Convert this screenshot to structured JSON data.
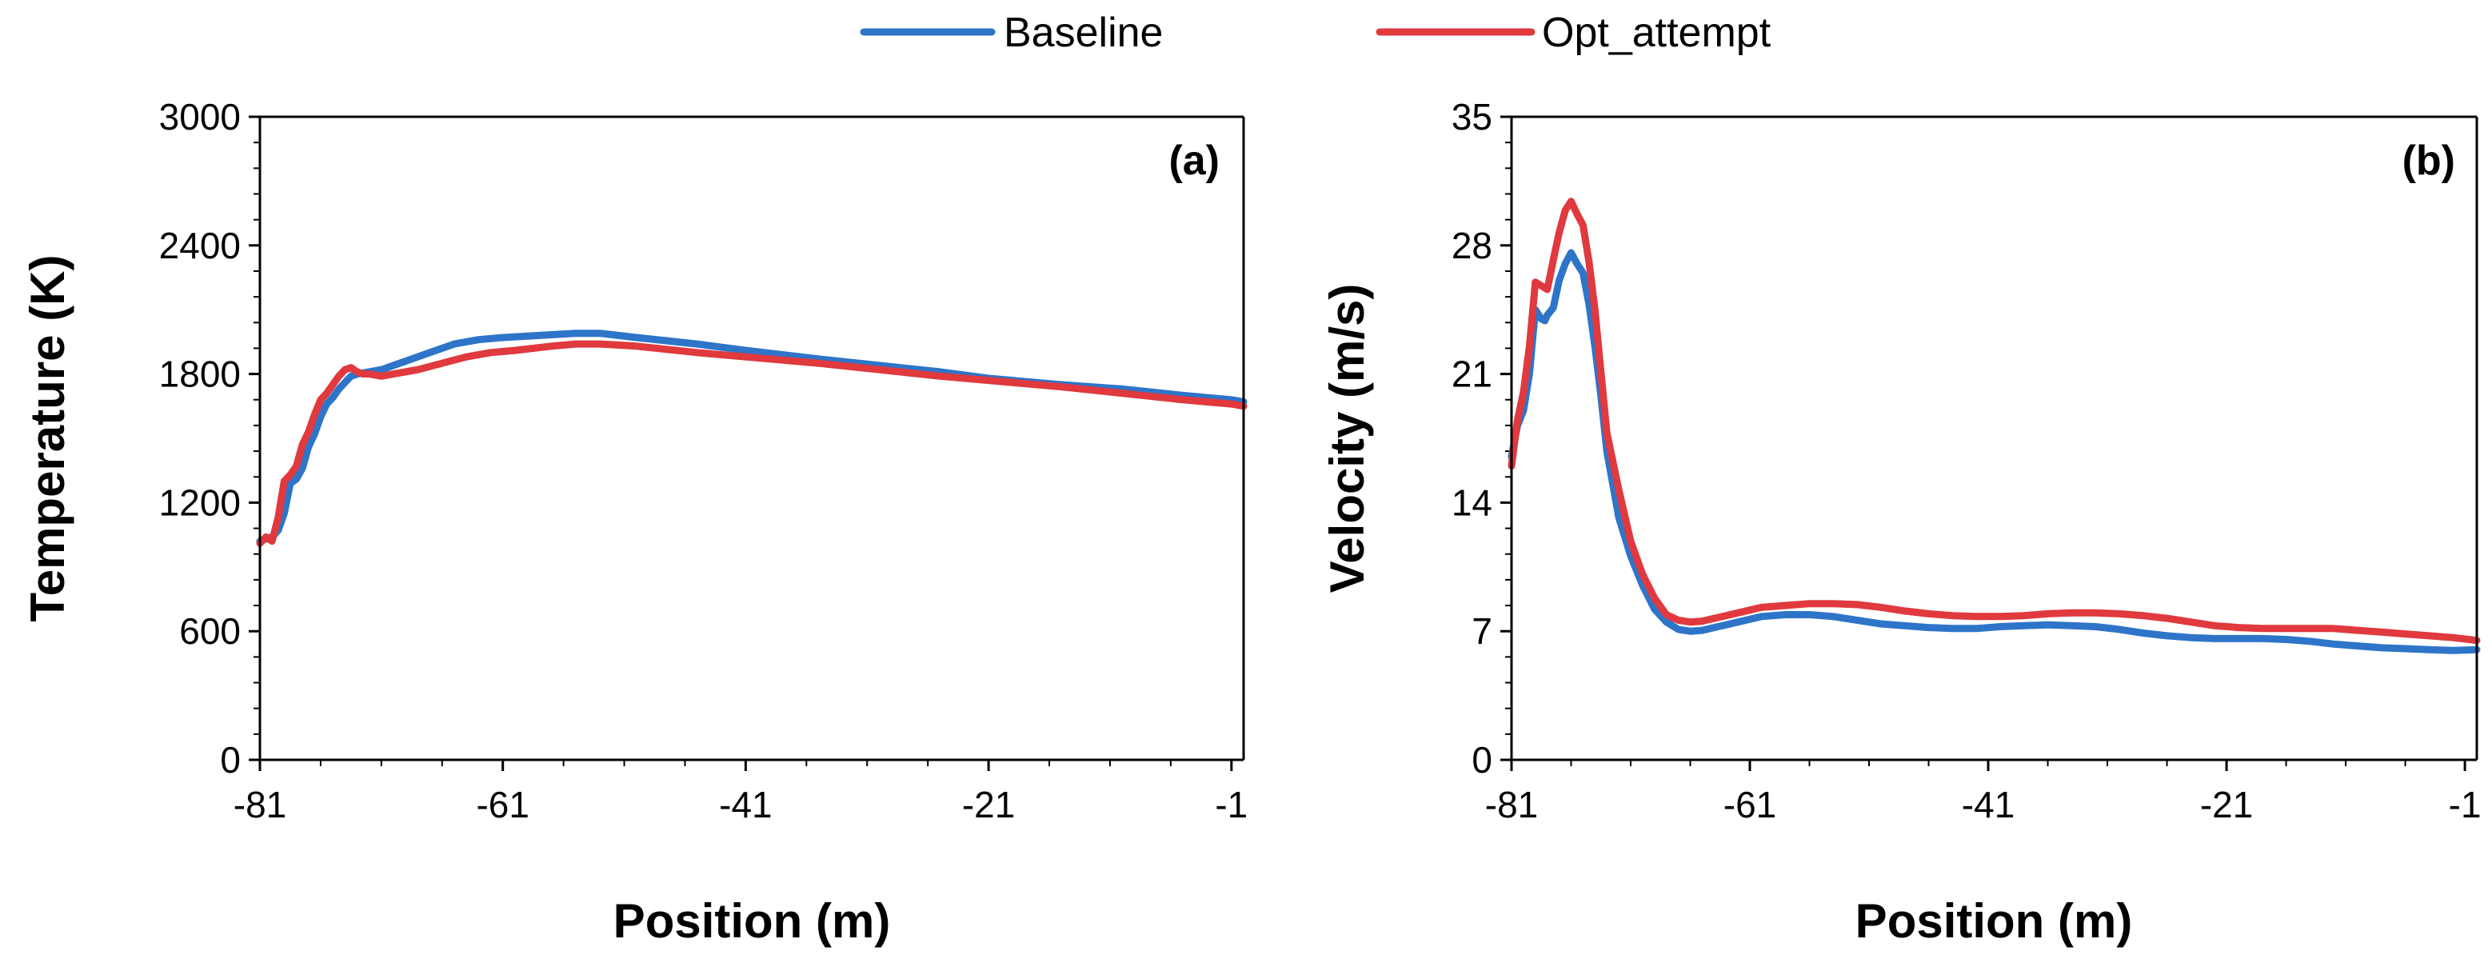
{
  "legend": [
    {
      "name": "Baseline",
      "color": "#2e75c9"
    },
    {
      "name": "Opt_attempt",
      "color": "#e0393e"
    }
  ],
  "chart_data": [
    {
      "type": "line",
      "panel_label": "(a)",
      "xlabel": "Position (m)",
      "ylabel": "Temperature (K)",
      "xlim": [
        -81,
        0
      ],
      "ylim": [
        0,
        3000
      ],
      "xticks": [
        -81,
        -61,
        -41,
        -21,
        -1
      ],
      "yticks": [
        0,
        600,
        1200,
        1800,
        2400,
        3000
      ],
      "series": [
        {
          "name": "Baseline",
          "color": "#2e75c9",
          "x": [
            -81,
            -80,
            -79.5,
            -79,
            -78.5,
            -78,
            -77.5,
            -77,
            -76.5,
            -76,
            -75.5,
            -75,
            -74.5,
            -74,
            -73.5,
            -73,
            -72,
            -71,
            -70,
            -69,
            -67,
            -65,
            -63,
            -61,
            -58,
            -55,
            -53,
            -50,
            -45,
            -41,
            -35,
            -30,
            -25,
            -21,
            -15,
            -10,
            -5,
            -1,
            0
          ],
          "y": [
            1020,
            1040,
            1070,
            1150,
            1290,
            1310,
            1360,
            1460,
            1520,
            1600,
            1660,
            1690,
            1730,
            1760,
            1790,
            1800,
            1810,
            1820,
            1840,
            1860,
            1900,
            1940,
            1960,
            1970,
            1980,
            1990,
            1990,
            1970,
            1940,
            1910,
            1870,
            1840,
            1810,
            1780,
            1750,
            1730,
            1700,
            1680,
            1670
          ]
        },
        {
          "name": "Opt_attempt",
          "color": "#e0393e",
          "x": [
            -81,
            -80.5,
            -80,
            -79.5,
            -79,
            -78.5,
            -78,
            -77.5,
            -77,
            -76.5,
            -76,
            -75.5,
            -75,
            -74.5,
            -74,
            -73.5,
            -73,
            -72.5,
            -72,
            -71,
            -70,
            -68,
            -66,
            -64,
            -62,
            -60,
            -57,
            -55,
            -53,
            -50,
            -45,
            -41,
            -35,
            -30,
            -25,
            -21,
            -15,
            -10,
            -5,
            -1,
            0
          ],
          "y": [
            1010,
            1040,
            1020,
            1130,
            1300,
            1330,
            1370,
            1470,
            1530,
            1610,
            1680,
            1710,
            1750,
            1790,
            1820,
            1830,
            1810,
            1800,
            1800,
            1790,
            1800,
            1820,
            1850,
            1880,
            1900,
            1910,
            1930,
            1940,
            1940,
            1930,
            1900,
            1880,
            1850,
            1820,
            1790,
            1770,
            1740,
            1710,
            1680,
            1660,
            1650
          ]
        }
      ]
    },
    {
      "type": "line",
      "panel_label": "(b)",
      "xlabel": "Position (m)",
      "ylabel": "Velocity (m/s)",
      "xlim": [
        -81,
        0
      ],
      "ylim": [
        0,
        35
      ],
      "xticks": [
        -81,
        -61,
        -41,
        -21,
        -1
      ],
      "yticks": [
        0,
        7,
        14,
        21,
        28,
        35
      ],
      "series": [
        {
          "name": "Baseline",
          "color": "#2e75c9",
          "x": [
            -81,
            -80.5,
            -80,
            -79.5,
            -79,
            -78.5,
            -78.2,
            -78,
            -77.5,
            -77,
            -76.5,
            -76,
            -75.5,
            -75,
            -74.5,
            -74,
            -73.5,
            -73,
            -72,
            -71,
            -70,
            -69,
            -68,
            -67,
            -66,
            -65,
            -64,
            -63,
            -62,
            -61,
            -60,
            -58,
            -56,
            -54,
            -52,
            -50,
            -48,
            -46,
            -44,
            -42,
            -40,
            -38,
            -36,
            -34,
            -32,
            -30,
            -28,
            -26,
            -24,
            -22,
            -20,
            -18,
            -16,
            -14,
            -12,
            -10,
            -8,
            -6,
            -4,
            -2,
            0
          ],
          "y": [
            16.5,
            18.2,
            19,
            21,
            24.5,
            24,
            23.9,
            24.2,
            24.6,
            26.1,
            27,
            27.6,
            27,
            26.5,
            24.8,
            22.5,
            19.8,
            16.8,
            13.2,
            11.1,
            9.5,
            8.2,
            7.5,
            7.1,
            7,
            7.05,
            7.2,
            7.35,
            7.5,
            7.65,
            7.8,
            7.9,
            7.9,
            7.8,
            7.6,
            7.4,
            7.3,
            7.2,
            7.15,
            7.15,
            7.25,
            7.3,
            7.35,
            7.3,
            7.25,
            7.1,
            6.9,
            6.75,
            6.65,
            6.6,
            6.6,
            6.6,
            6.55,
            6.45,
            6.3,
            6.2,
            6.1,
            6.05,
            6,
            5.95,
            6
          ]
        },
        {
          "name": "Opt_attempt",
          "color": "#e0393e",
          "x": [
            -81,
            -80.5,
            -80,
            -79.5,
            -79,
            -78.5,
            -78,
            -77.5,
            -77,
            -76.5,
            -76,
            -75.5,
            -75,
            -74.5,
            -74,
            -73.5,
            -73,
            -72,
            -71,
            -70,
            -69,
            -68,
            -67,
            -66,
            -65,
            -64,
            -63,
            -62,
            -61,
            -60,
            -58,
            -56,
            -54,
            -52,
            -50,
            -48,
            -46,
            -44,
            -42,
            -40,
            -38,
            -36,
            -34,
            -32,
            -30,
            -28,
            -26,
            -24,
            -22,
            -20,
            -18,
            -16,
            -14,
            -12,
            -10,
            -8,
            -6,
            -4,
            -2,
            0
          ],
          "y": [
            16,
            18.5,
            20,
            22.5,
            26,
            25.8,
            25.6,
            27.2,
            28.7,
            29.9,
            30.4,
            29.7,
            29.1,
            27.1,
            24.5,
            21.1,
            17.8,
            14.7,
            11.9,
            10.1,
            8.8,
            7.9,
            7.6,
            7.5,
            7.55,
            7.7,
            7.85,
            8,
            8.15,
            8.3,
            8.4,
            8.5,
            8.5,
            8.45,
            8.3,
            8.1,
            7.95,
            7.85,
            7.8,
            7.8,
            7.85,
            7.95,
            8,
            8,
            7.95,
            7.85,
            7.7,
            7.5,
            7.3,
            7.2,
            7.15,
            7.15,
            7.15,
            7.15,
            7.05,
            6.95,
            6.85,
            6.75,
            6.65,
            6.5
          ]
        }
      ]
    }
  ]
}
